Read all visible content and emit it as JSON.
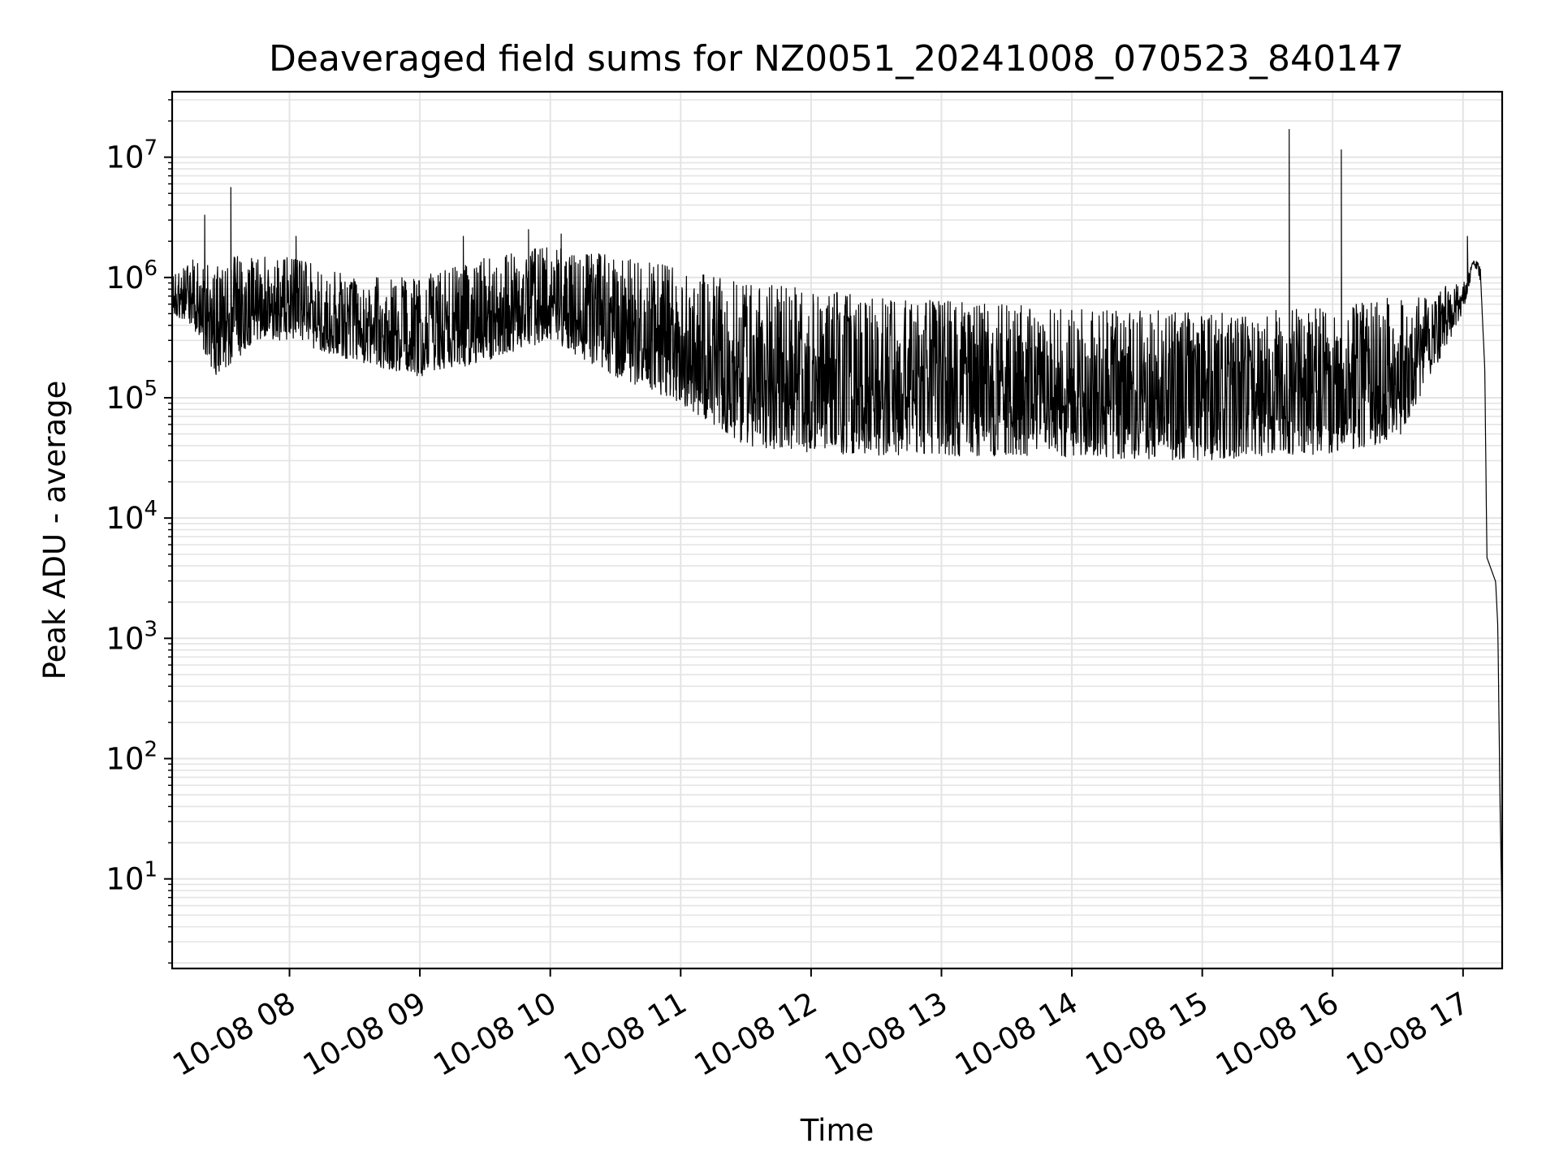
{
  "chart_data": {
    "type": "line",
    "title": "Deaveraged field sums for NZ0051_20241008_070523_840147",
    "xlabel": "Time",
    "ylabel": "Peak ADU - average",
    "x_scale": "time",
    "y_scale": "log",
    "xlim": [
      "2024-10-08 07:06",
      "2024-10-08 17:18"
    ],
    "ylim": [
      1.8,
      35000000
    ],
    "grid": true,
    "line_color": "#000000",
    "x_ticks": [
      {
        "t": "2024-10-08 08:00",
        "label": "10-08 08"
      },
      {
        "t": "2024-10-08 09:00",
        "label": "10-08 09"
      },
      {
        "t": "2024-10-08 10:00",
        "label": "10-08 10"
      },
      {
        "t": "2024-10-08 11:00",
        "label": "10-08 11"
      },
      {
        "t": "2024-10-08 12:00",
        "label": "10-08 12"
      },
      {
        "t": "2024-10-08 13:00",
        "label": "10-08 13"
      },
      {
        "t": "2024-10-08 14:00",
        "label": "10-08 14"
      },
      {
        "t": "2024-10-08 15:00",
        "label": "10-08 15"
      },
      {
        "t": "2024-10-08 16:00",
        "label": "10-08 16"
      },
      {
        "t": "2024-10-08 17:00",
        "label": "10-08 17"
      }
    ],
    "y_ticks": [
      {
        "value": 10,
        "base": "10",
        "exp": "1"
      },
      {
        "value": 100,
        "base": "10",
        "exp": "2"
      },
      {
        "value": 1000,
        "base": "10",
        "exp": "3"
      },
      {
        "value": 10000,
        "base": "10",
        "exp": "4"
      },
      {
        "value": 100000,
        "base": "10",
        "exp": "5"
      },
      {
        "value": 1000000,
        "base": "10",
        "exp": "6"
      },
      {
        "value": 10000000,
        "base": "10",
        "exp": "7"
      }
    ],
    "series": [
      {
        "x": [
          "2024-10-08 07:06",
          "2024-10-08 07:15",
          "2024-10-08 07:25",
          "2024-10-08 07:35",
          "2024-10-08 07:45",
          "2024-10-08 08:00",
          "2024-10-08 08:30",
          "2024-10-08 09:00",
          "2024-10-08 09:30",
          "2024-10-08 10:00",
          "2024-10-08 10:30",
          "2024-10-08 11:00",
          "2024-10-08 11:30",
          "2024-10-08 12:00",
          "2024-10-08 12:30",
          "2024-10-08 13:00",
          "2024-10-08 13:30",
          "2024-10-08 14:00",
          "2024-10-08 14:30",
          "2024-10-08 15:00",
          "2024-10-08 15:30",
          "2024-10-08 16:00",
          "2024-10-08 16:30",
          "2024-10-08 16:45",
          "2024-10-08 17:00",
          "2024-10-08 17:05",
          "2024-10-08 17:08",
          "2024-10-08 17:10",
          "2024-10-08 17:11",
          "2024-10-08 17:15",
          "2024-10-08 17:16",
          "2024-10-08 17:17",
          "2024-10-08 17:18"
        ],
        "y_low": [
          500000,
          400000,
          150000,
          200000,
          300000,
          300000,
          200000,
          150000,
          200000,
          300000,
          150000,
          90000,
          40000,
          35000,
          33000,
          33000,
          32000,
          32000,
          31000,
          30000,
          33000,
          34000,
          45000,
          150000,
          500000,
          1300000,
          900000,
          100000,
          4000,
          2500,
          800,
          20,
          3.7
        ],
        "y_high": [
          1000000,
          1500000,
          1200000,
          1500000,
          1500000,
          1500000,
          1000000,
          1000000,
          1500000,
          1800000,
          1500000,
          1200000,
          900000,
          800000,
          700000,
          650000,
          600000,
          550000,
          550000,
          500000,
          550000,
          550000,
          700000,
          800000,
          900000,
          1400000,
          1300000,
          300000,
          5500,
          3500,
          2000,
          100,
          5
        ],
        "spikes": [
          {
            "x": "2024-10-08 07:21",
            "y": 3300000
          },
          {
            "x": "2024-10-08 07:33",
            "y": 5600000
          },
          {
            "x": "2024-10-08 08:03",
            "y": 2200000
          },
          {
            "x": "2024-10-08 09:20",
            "y": 2200000
          },
          {
            "x": "2024-10-08 09:50",
            "y": 2500000
          },
          {
            "x": "2024-10-08 10:05",
            "y": 2300000
          },
          {
            "x": "2024-10-08 15:40",
            "y": 17000000
          },
          {
            "x": "2024-10-08 16:04",
            "y": 11500000
          },
          {
            "x": "2024-10-08 17:02",
            "y": 2200000
          }
        ]
      }
    ]
  }
}
